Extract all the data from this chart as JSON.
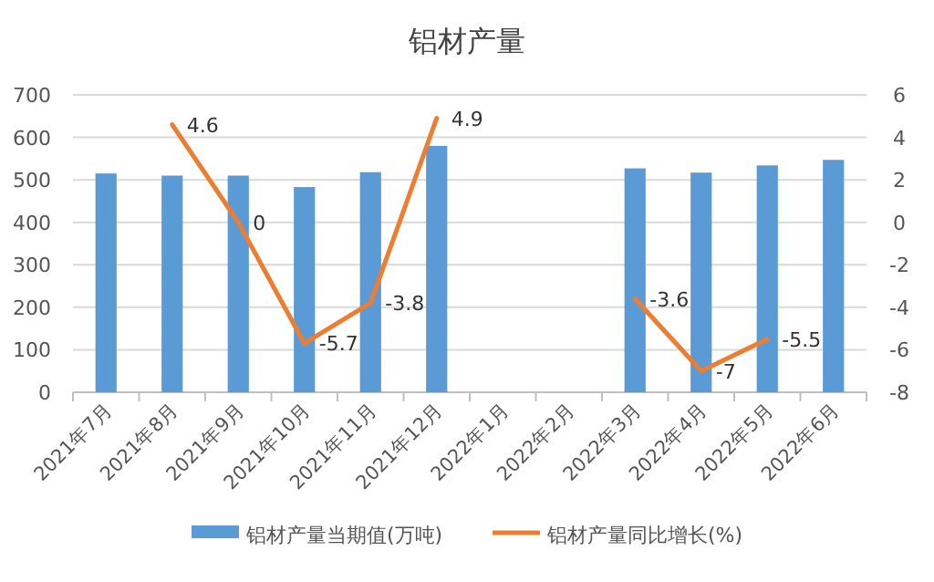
{
  "chart_data": {
    "type": "bar",
    "title": "铝材产量",
    "categories": [
      "2021年7月",
      "2021年8月",
      "2021年9月",
      "2021年10月",
      "2021年11月",
      "2021年12月",
      "2022年1月",
      "2022年2月",
      "2022年3月",
      "2022年4月",
      "2022年5月",
      "2022年6月"
    ],
    "series": [
      {
        "name": "铝材产量当期值(万吨)",
        "color": "#5b9bd5",
        "values": [
          515,
          510,
          510,
          483,
          518,
          580,
          null,
          null,
          527,
          517,
          534,
          547
        ]
      },
      {
        "name": "铝材产量同比增长(%)",
        "type": "line",
        "axis": "y2",
        "color": "#ed7d31",
        "values": [
          null,
          4.6,
          0,
          -5.7,
          -3.8,
          4.9,
          null,
          null,
          -3.6,
          -7,
          -5.5,
          null
        ],
        "value_labels": [
          null,
          "4.6",
          "0",
          "-5.7",
          "-3.8",
          "4.9",
          null,
          null,
          "-3.6",
          "-7",
          "-5.5",
          null
        ]
      }
    ],
    "ylim": [
      0,
      700
    ],
    "yticks": [
      0,
      100,
      200,
      300,
      400,
      500,
      600,
      700
    ],
    "y2lim": [
      -8,
      6
    ],
    "y2ticks": [
      -8,
      -6,
      -4,
      -2,
      0,
      2,
      4,
      6
    ],
    "grid": "y",
    "legend": "bottom",
    "marker": "none",
    "line_style": "solid"
  }
}
